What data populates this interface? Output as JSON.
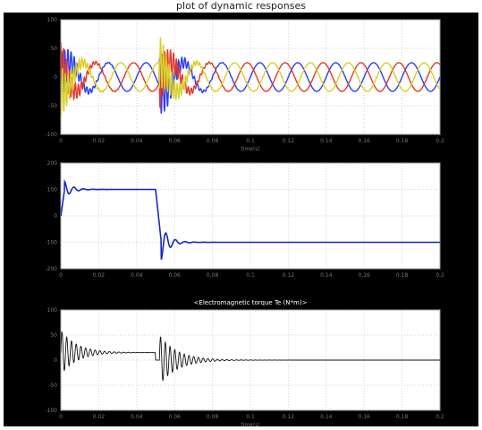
{
  "figure": {
    "caption": "plot of dynamic responses"
  },
  "chart_data": [
    {
      "type": "line",
      "title": "",
      "xlabel": "time(s)",
      "ylabel": "",
      "xlim": [
        0,
        0.2
      ],
      "ylim": [
        -100,
        100
      ],
      "grid": true,
      "x_ticks": [
        "0",
        "0.02",
        "0.04",
        "0.06",
        "0.08",
        "0.1",
        "0.12",
        "0.14",
        "0.16",
        "0.18",
        "0.2"
      ],
      "y_ticks": [
        "100",
        "50",
        "0",
        "-50",
        "-100"
      ],
      "series": [
        {
          "color": "#2a3cff",
          "description": "phase a: steady 3-phase sinusoid ~25 amplitude, transients at t≈0 and t≈0.055"
        },
        {
          "color": "#e23a2a",
          "description": "phase b"
        },
        {
          "color": "#d8d02a",
          "description": "phase c"
        }
      ],
      "steady_amplitude": 25,
      "period": 0.02,
      "transients": [
        {
          "t": 0.0,
          "peak": 70,
          "decay_end": 0.02
        },
        {
          "t": 0.052,
          "peak": 75,
          "decay_end": 0.075
        }
      ]
    },
    {
      "type": "line",
      "title": "",
      "xlabel": "",
      "ylabel": "",
      "xlim": [
        0,
        0.2
      ],
      "ylim": [
        -200,
        200
      ],
      "grid": true,
      "x_ticks": [
        "0",
        "0.02",
        "0.04",
        "0.06",
        "0.08",
        "0.1",
        "0.12",
        "0.14",
        "0.16",
        "0.18",
        "0.2"
      ],
      "y_ticks": [
        "200",
        "100",
        "0",
        "-100",
        "-200"
      ],
      "series": [
        {
          "color": "#1428c8",
          "description": "speed: step up to 100, step down to -100 at t≈0.05"
        }
      ],
      "levels": [
        {
          "from": 0.0,
          "to": 0.05,
          "value": 100
        },
        {
          "from": 0.05,
          "to": 0.2,
          "value": -100
        }
      ],
      "overshoots": [
        {
          "t": 0.004,
          "peak": 130
        },
        {
          "t": 0.056,
          "peak": -165
        }
      ]
    },
    {
      "type": "line",
      "title": "<Electromagnetic torque Te (N*m)>",
      "xlabel": "time(s)",
      "ylabel": "",
      "xlim": [
        0,
        0.2
      ],
      "ylim": [
        -100,
        100
      ],
      "grid": true,
      "x_ticks": [
        "0",
        "0.02",
        "0.04",
        "0.06",
        "0.08",
        "0.1",
        "0.12",
        "0.14",
        "0.16",
        "0.18",
        "0.2"
      ],
      "y_ticks": [
        "100",
        "50",
        "0",
        "-50",
        "-100"
      ],
      "series": [
        {
          "color": "#111111",
          "description": "torque: oscillates around ~15 until t≈0.05, then around ~0"
        }
      ],
      "levels": [
        {
          "from": 0.0,
          "to": 0.05,
          "value": 15
        },
        {
          "from": 0.05,
          "to": 0.2,
          "value": 0
        }
      ],
      "transients": [
        {
          "t": 0.0,
          "peak": 45,
          "decay_end": 0.025
        },
        {
          "t": 0.052,
          "peak": 50,
          "decay_end": 0.08
        }
      ]
    }
  ]
}
